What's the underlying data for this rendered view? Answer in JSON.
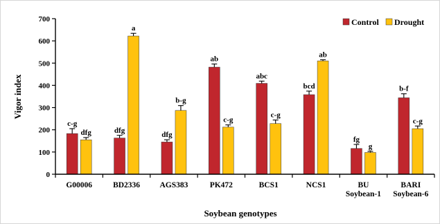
{
  "chart_data": {
    "type": "bar",
    "xlabel": "Soybean genotypes",
    "ylabel": "Vigor index",
    "ylim": [
      0,
      700
    ],
    "yticks": [
      0,
      100,
      200,
      300,
      400,
      500,
      600,
      700
    ],
    "grid": false,
    "legend_position": "top-right",
    "categories": [
      [
        "G00006"
      ],
      [
        "BD2336"
      ],
      [
        "AGS383"
      ],
      [
        "PK472"
      ],
      [
        "BCS1"
      ],
      [
        "NCS1"
      ],
      [
        "BU",
        "Soybean-1"
      ],
      [
        "BARI",
        "Soybean-6"
      ]
    ],
    "series": [
      {
        "name": "Control",
        "color": "#c0262d",
        "values": [
          183,
          163,
          145,
          482,
          409,
          358,
          116,
          344
        ],
        "errors": [
          22,
          12,
          10,
          14,
          10,
          16,
          18,
          18
        ],
        "labels": [
          "c-g",
          "dfg",
          "dfg",
          "ab",
          "abc",
          "bcd",
          "fg",
          "b-f"
        ]
      },
      {
        "name": "Drought",
        "color": "#ffc20e",
        "values": [
          155,
          null,
          287,
          212,
          228,
          510,
          98,
          205
        ],
        "errors": [
          10,
          12,
          22,
          10,
          16,
          5,
          5,
          12
        ],
        "labels": [
          "dfg",
          "a",
          "b-g",
          "c-g",
          "c-g",
          "ab",
          "g",
          "c-g"
        ]
      }
    ],
    "drought_bd2336_value": 622
  }
}
